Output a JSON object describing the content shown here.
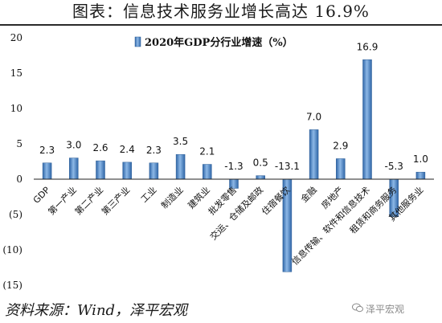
{
  "header": {
    "title": "图表：信息技术服务业增长高达 16.9%"
  },
  "footer": {
    "source": "资料来源：Wind，泽平宏观",
    "watermark": "泽平宏观"
  },
  "chart_data": {
    "type": "bar",
    "legend": "2020年GDP分行业增速（%）",
    "categories": [
      "GDP",
      "第一产业",
      "第二产业",
      "第三产业",
      "工业",
      "制造业",
      "建筑业",
      "批发零售",
      "交运、仓储及邮政",
      "住宿餐饮",
      "金融",
      "房地产",
      "信息传输、软件和信息技术",
      "租赁和商务服务",
      "其他服务业"
    ],
    "values": [
      2.3,
      3.0,
      2.6,
      2.4,
      2.3,
      3.5,
      2.1,
      -1.3,
      0.5,
      -13.1,
      7.0,
      2.9,
      16.9,
      -5.3,
      1.0
    ],
    "value_labels": [
      "2.3",
      "3.0",
      "2.6",
      "2.4",
      "2.3",
      "3.5",
      "2.1",
      "-1.3",
      "0.5",
      "-13.1",
      "7.0",
      "2.9",
      "16.9",
      "-5.3",
      "1.0"
    ],
    "ylim": [
      -15,
      20
    ],
    "yticks": [
      -15,
      -10,
      -5,
      0,
      5,
      10,
      15,
      20
    ],
    "ytick_labels": [
      "(15)",
      "(10)",
      "(5)",
      "0",
      "5",
      "10",
      "15",
      "20"
    ],
    "colors": {
      "bar": "#4a82c4",
      "bar_edge": "#2f5f96",
      "legend_box": "#4a82c4"
    }
  }
}
